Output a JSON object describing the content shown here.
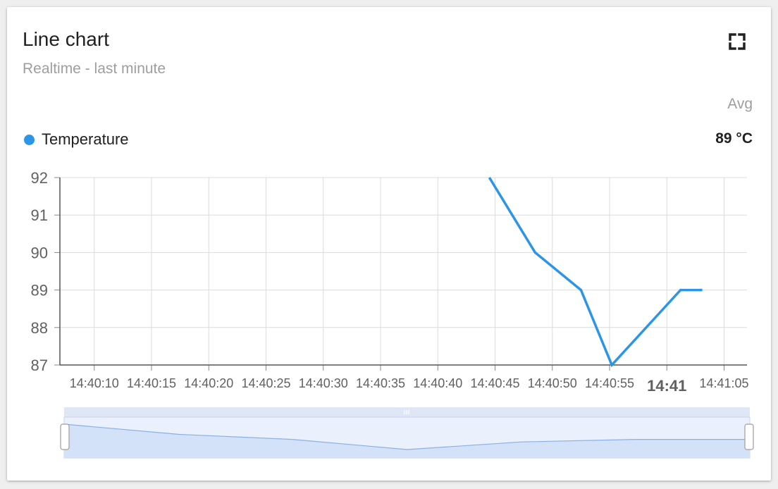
{
  "widget": {
    "title": "Line chart",
    "subtitle": "Realtime - last minute",
    "fullscreen_icon": "fullscreen-icon"
  },
  "legend": {
    "stat_header": "Avg",
    "items": [
      {
        "label": "Temperature",
        "value": "89 °C",
        "color": "#2b95e9"
      }
    ]
  },
  "chart_data": {
    "type": "line",
    "title": "",
    "xlabel": "",
    "ylabel": "",
    "ylim": [
      87,
      92
    ],
    "y_ticks": [
      "87",
      "88",
      "89",
      "90",
      "91",
      "92"
    ],
    "x_ticks": [
      "14:40:10",
      "14:40:15",
      "14:40:20",
      "14:40:25",
      "14:40:30",
      "14:40:35",
      "14:40:40",
      "14:40:45",
      "14:40:50",
      "14:40:55",
      "14:41",
      "14:41:05"
    ],
    "x_range": [
      "14:40:07",
      "14:41:07"
    ],
    "grid": true,
    "series": [
      {
        "name": "Temperature",
        "color": "#2b95e9",
        "x": [
          "14:40:44.5",
          "14:40:48.5",
          "14:40:52.5",
          "14:40:55.2",
          "14:41:01.2",
          "14:41:03.1"
        ],
        "values": [
          92,
          90,
          89,
          87,
          89,
          89
        ]
      }
    ],
    "navigator": {
      "values": [
        92,
        90,
        89,
        87,
        88.5,
        89,
        89
      ]
    }
  }
}
